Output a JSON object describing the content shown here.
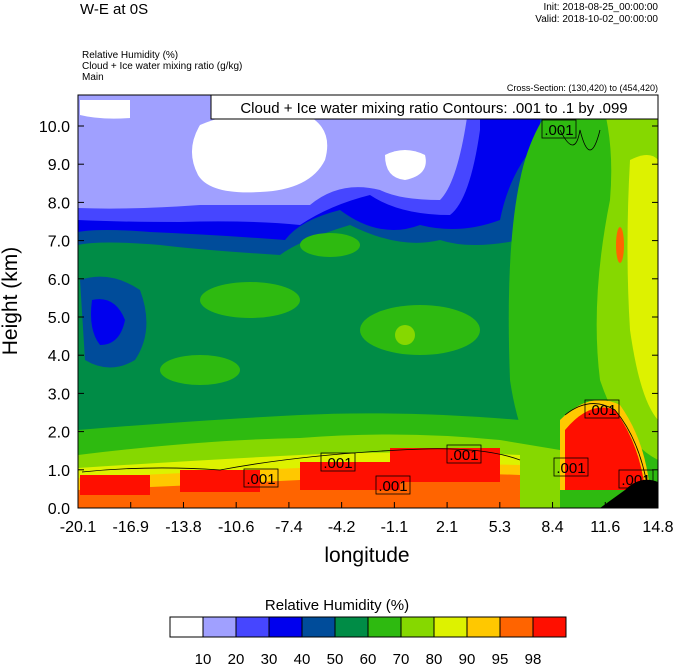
{
  "header": {
    "title": "W-E at 0S",
    "init": "Init: 2018-08-25_00:00:00",
    "valid": "Valid: 2018-10-02_00:00:00",
    "fields": [
      "Relative Humidity   (%)",
      "Cloud + Ice water mixing ratio   (g/kg)",
      "Main"
    ],
    "cross_section": "Cross-Section: (130,420) to (454,420)"
  },
  "chart_data": {
    "type": "heatmap",
    "title": "W-E at 0S",
    "contour_title": "Cloud + Ice water mixing ratio Contours: .001 to .1 by .099",
    "xlabel": "longitude",
    "ylabel": "Height (km)",
    "xticks": [
      "-20.1",
      "-16.9",
      "-13.8",
      "-10.6",
      "-7.4",
      "-4.2",
      "-1.1",
      "2.1",
      "5.3",
      "8.4",
      "11.6",
      "14.8"
    ],
    "yticks": [
      "0.0",
      "1.0",
      "2.0",
      "3.0",
      "4.0",
      "5.0",
      "6.0",
      "7.0",
      "8.0",
      "9.0",
      "10.0"
    ],
    "xlim": [
      -20.1,
      14.8
    ],
    "ylim": [
      0,
      10.8
    ],
    "contour_labels": [
      ".001",
      ".001",
      ".001",
      ".001",
      ".001",
      ".001",
      ".001",
      ".001"
    ],
    "colorbar": {
      "title": "Relative Humidity  (%)",
      "labels": [
        "10",
        "20",
        "30",
        "40",
        "50",
        "60",
        "70",
        "80",
        "90",
        "95",
        "98"
      ],
      "colors": [
        "#ffffff",
        "#a0a0ff",
        "#4646ff",
        "#0000ee",
        "#004c9a",
        "#008c46",
        "#2eba10",
        "#86d800",
        "#ddf200",
        "#ffc800",
        "#ff6400",
        "#ff0f00"
      ]
    }
  }
}
